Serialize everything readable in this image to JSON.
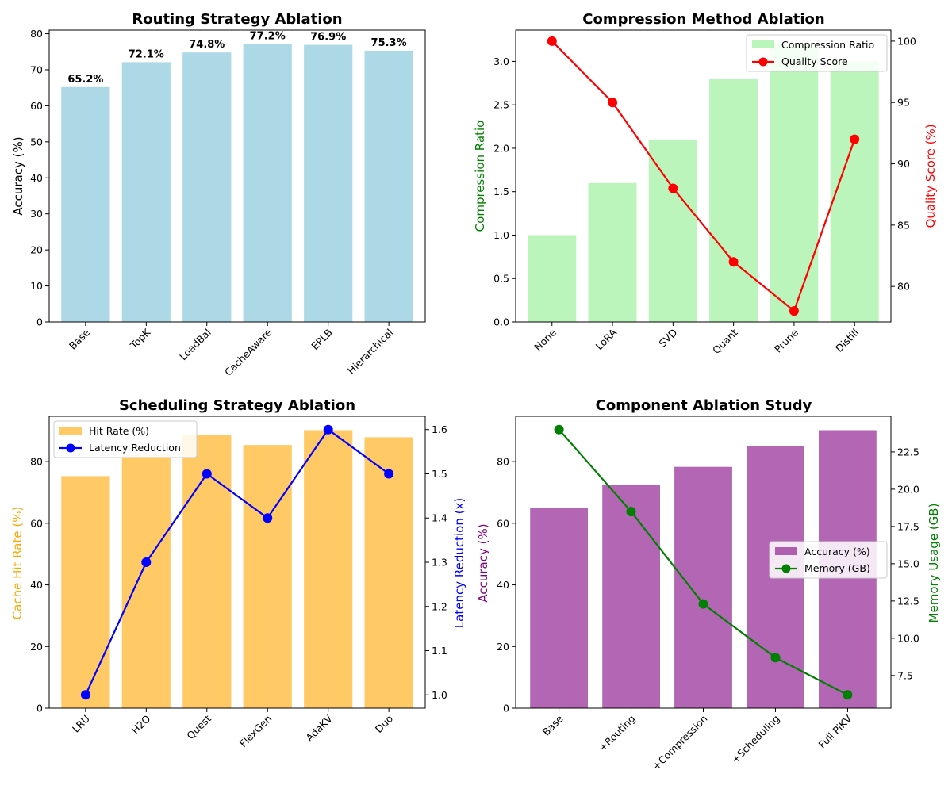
{
  "chart_data": [
    {
      "type": "bar",
      "title": "Routing Strategy Ablation",
      "categories": [
        "Base",
        "TopK",
        "LoadBal",
        "CacheAware",
        "EPLB",
        "Hierarchical"
      ],
      "values": [
        65.2,
        72.1,
        74.8,
        77.2,
        76.9,
        75.3
      ],
      "data_labels": [
        "65.2%",
        "72.1%",
        "74.8%",
        "77.2%",
        "76.9%",
        "75.3%"
      ],
      "xlabel": "",
      "ylabel": "Accuracy (%)",
      "ylim": [
        0,
        81
      ],
      "yticks": [
        0,
        10,
        20,
        30,
        40,
        50,
        60,
        70,
        80
      ],
      "bar_color": "#add8e6"
    },
    {
      "type": "bar+line",
      "title": "Compression Method Ablation",
      "categories": [
        "None",
        "LoRA",
        "SVD",
        "Quant",
        "Prune",
        "Distill"
      ],
      "bar_series": {
        "name": "Compression Ratio",
        "values": [
          1.0,
          1.6,
          2.1,
          2.8,
          3.2,
          3.0
        ],
        "color": "#90ee90"
      },
      "line_series": {
        "name": "Quality Score",
        "values": [
          100,
          95,
          88,
          82,
          78,
          92
        ],
        "color": "#ff0000"
      },
      "ylabel_left": "Compression Ratio",
      "ylabel_right": "Quality Score (%)",
      "ylabel_left_color": "#008000",
      "ylabel_right_color": "#ff0000",
      "ylim_left": [
        0,
        3.36
      ],
      "ylim_right": [
        77.1,
        100.9
      ],
      "yticks_left": [
        "0.0",
        "0.5",
        "1.0",
        "1.5",
        "2.0",
        "2.5",
        "3.0"
      ],
      "yticks_right": [
        "80",
        "85",
        "90",
        "95",
        "100"
      ],
      "legend": [
        "Compression Ratio",
        "Quality Score"
      ],
      "legend_position": "top-right"
    },
    {
      "type": "bar+line",
      "title": "Scheduling Strategy Ablation",
      "categories": [
        "LRU",
        "H2O",
        "Quest",
        "FlexGen",
        "AdaKV",
        "Duo"
      ],
      "bar_series": {
        "name": "Hit Rate (%)",
        "values": [
          75.3,
          82.1,
          88.7,
          85.4,
          90.2,
          87.9
        ],
        "color": "#ffa500"
      },
      "line_series": {
        "name": "Latency Reduction",
        "values": [
          1.0,
          1.3,
          1.5,
          1.4,
          1.6,
          1.5
        ],
        "color": "#0000ff"
      },
      "ylabel_left": "Cache Hit Rate (%)",
      "ylabel_right": "Latency Reduction (x)",
      "ylabel_left_color": "#ffa500",
      "ylabel_right_color": "#0000ff",
      "ylim_left": [
        0,
        94.7
      ],
      "ylim_right": [
        0.97,
        1.63
      ],
      "yticks_left": [
        "0",
        "20",
        "40",
        "60",
        "80"
      ],
      "yticks_right": [
        "1.0",
        "1.1",
        "1.2",
        "1.3",
        "1.4",
        "1.5",
        "1.6"
      ],
      "legend": [
        "Hit Rate (%)",
        "Latency Reduction"
      ],
      "legend_position": "top-left"
    },
    {
      "type": "bar+line",
      "title": "Component Ablation Study",
      "categories": [
        "Base",
        "+Routing",
        "+Compression",
        "+Scheduling",
        "Full PiKV"
      ],
      "bar_series": {
        "name": "Accuracy (%)",
        "values": [
          65.0,
          72.5,
          78.3,
          85.1,
          90.2
        ],
        "color": "#800080"
      },
      "line_series": {
        "name": "Memory (GB)",
        "values": [
          24.0,
          18.5,
          12.3,
          8.7,
          6.2
        ],
        "color": "#008000"
      },
      "ylabel_left": "Accuracy (%)",
      "ylabel_right": "Memory Usage (GB)",
      "ylabel_left_color": "#800080",
      "ylabel_right_color": "#008000",
      "ylim_left": [
        0,
        94.7
      ],
      "ylim_right": [
        5.31,
        24.89
      ],
      "yticks_left": [
        "0",
        "20",
        "40",
        "60",
        "80"
      ],
      "yticks_right": [
        "7.5",
        "10.0",
        "12.5",
        "15.0",
        "17.5",
        "20.0",
        "22.5"
      ],
      "legend": [
        "Accuracy (%)",
        "Memory (GB)"
      ],
      "legend_position": "center-right"
    }
  ]
}
